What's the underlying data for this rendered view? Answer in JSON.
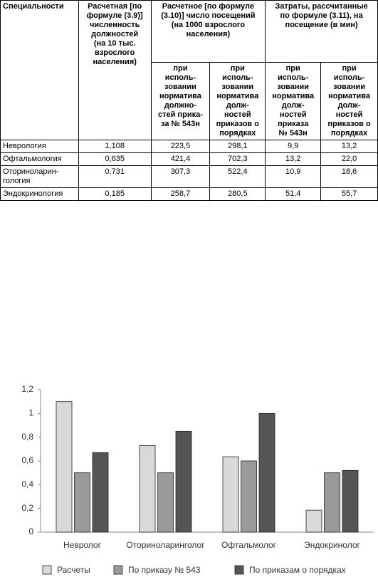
{
  "table": {
    "header": [
      "Специальности",
      "Расчетная [по\nформуле (3.9)]\nчисленность\nдолжностей\n(на 10 тыс.\nвзрослого\nнаселения)",
      "Расчетное [по формуле\n(3.10)] число посещений\n(на 1000 взрослого\nнаселения)",
      "Затраты, рассчитанные\nпо формуле (3.11), на\nпосещение (в мин)"
    ],
    "subheader": [
      "при\nисполь-\nзовании\nнорматива\nдолжно-\nстей прика-\nза № 543н",
      "при\nисполь-\nзовании\nнорматива\nдолж-\nностей\nприказов о\nпорядках",
      "при\nисполь-\nзовании\nнорматива\nдолж-\nностей\nприказа\n№ 543н",
      "при\nисполь-\nзовании\nнорматива\nдолж-\nностей\nприказов о\nпорядках"
    ],
    "rows": [
      [
        "Неврология",
        "1,108",
        "223,5",
        "298,1",
        "9,9",
        "13,2"
      ],
      [
        "Офтальмология",
        "0,635",
        "421,4",
        "702,3",
        "13,2",
        "22,0"
      ],
      [
        "Оториноларин-\nгология",
        "0,731",
        "307,3",
        "522,4",
        "10,9",
        "18,6"
      ],
      [
        "Эндокринология",
        "0,185",
        "258,7",
        "280,5",
        "51,4",
        "55,7"
      ]
    ]
  },
  "chart_data": {
    "type": "bar",
    "categories": [
      "Невролог",
      "Оториноларинголог",
      "Офтальмолог",
      "Эндокринолог"
    ],
    "series": [
      {
        "name": "Расчеты",
        "color": "#d9d9d9",
        "values": [
          1.1,
          0.73,
          0.635,
          0.185
        ]
      },
      {
        "name": "По приказу № 543",
        "color": "#9a9a9a",
        "values": [
          0.5,
          0.5,
          0.6,
          0.5
        ]
      },
      {
        "name": "По приказам о порядках",
        "color": "#555555",
        "values": [
          0.67,
          0.85,
          1.0,
          0.52
        ]
      }
    ],
    "ylim": [
      0,
      1.2
    ],
    "yticks": [
      0,
      {
        "value": 0.2,
        "label": "0,2"
      },
      {
        "value": 0.4,
        "label": "0,4"
      },
      {
        "value": 0.6,
        "label": "0,6"
      },
      {
        "value": 0.8,
        "label": "0,8"
      },
      1,
      {
        "value": 1.2,
        "label": "1,2"
      }
    ],
    "legend": "bottom"
  }
}
